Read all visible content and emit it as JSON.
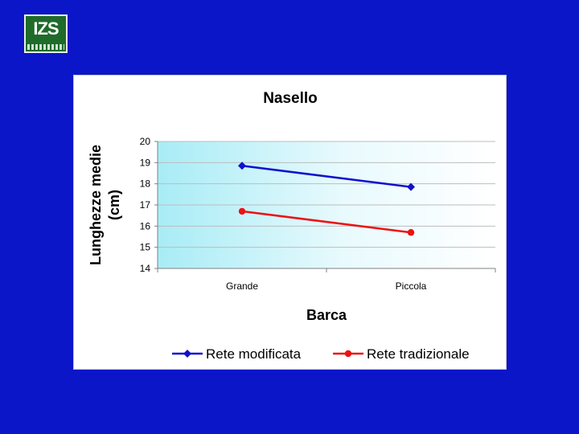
{
  "logo": {
    "text": "IZS"
  },
  "chart_data": {
    "type": "line",
    "title": "Nasello",
    "xlabel": "Barca",
    "ylabel": [
      "Lunghezze medie",
      "(cm)"
    ],
    "categories": [
      "Grande",
      "Piccola"
    ],
    "ylim": [
      14,
      20
    ],
    "yticks": [
      "14",
      "15",
      "16",
      "17",
      "18",
      "19",
      "20"
    ],
    "grid": true,
    "legend_position": "bottom",
    "series": [
      {
        "name": "Rete modificata",
        "values": [
          18.85,
          17.85
        ],
        "color": "#1010d0",
        "marker": "diamond"
      },
      {
        "name": "Rete tradizionale",
        "values": [
          16.7,
          15.7
        ],
        "color": "#ee1111",
        "marker": "circle"
      }
    ]
  }
}
